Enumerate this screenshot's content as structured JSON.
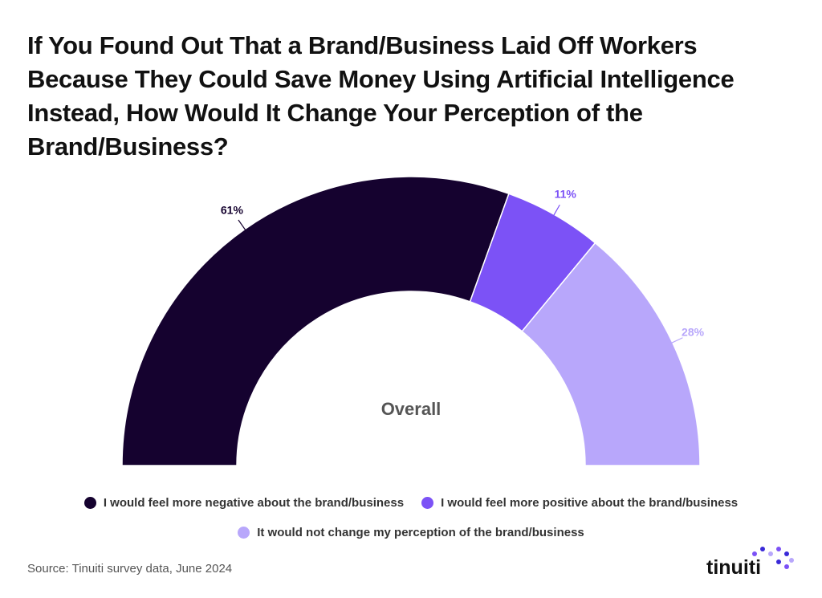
{
  "chart_data": {
    "type": "semidonut",
    "title": "If You Found Out That a Brand/Business Laid Off Workers Because They Could Save Money Using Artificial Intelligence Instead, How Would It Change Your Perception of the Brand/Business?",
    "center_label": "Overall",
    "series": [
      {
        "name": "I would feel more negative about the brand/business",
        "color": "#15022f",
        "values": [
          61
        ],
        "value_labels": [
          "61%"
        ]
      },
      {
        "name": "I would feel more positive about the brand/business",
        "color": "#7c52f6",
        "values": [
          11
        ],
        "value_labels": [
          "11%"
        ]
      },
      {
        "name": "It would not change my perception of the brand/business",
        "color": "#b8a7fb",
        "values": [
          28
        ],
        "value_labels": [
          "28%"
        ]
      }
    ],
    "source": "Source: Tinuiti survey data, June 2024",
    "brand": "tinuiti"
  }
}
